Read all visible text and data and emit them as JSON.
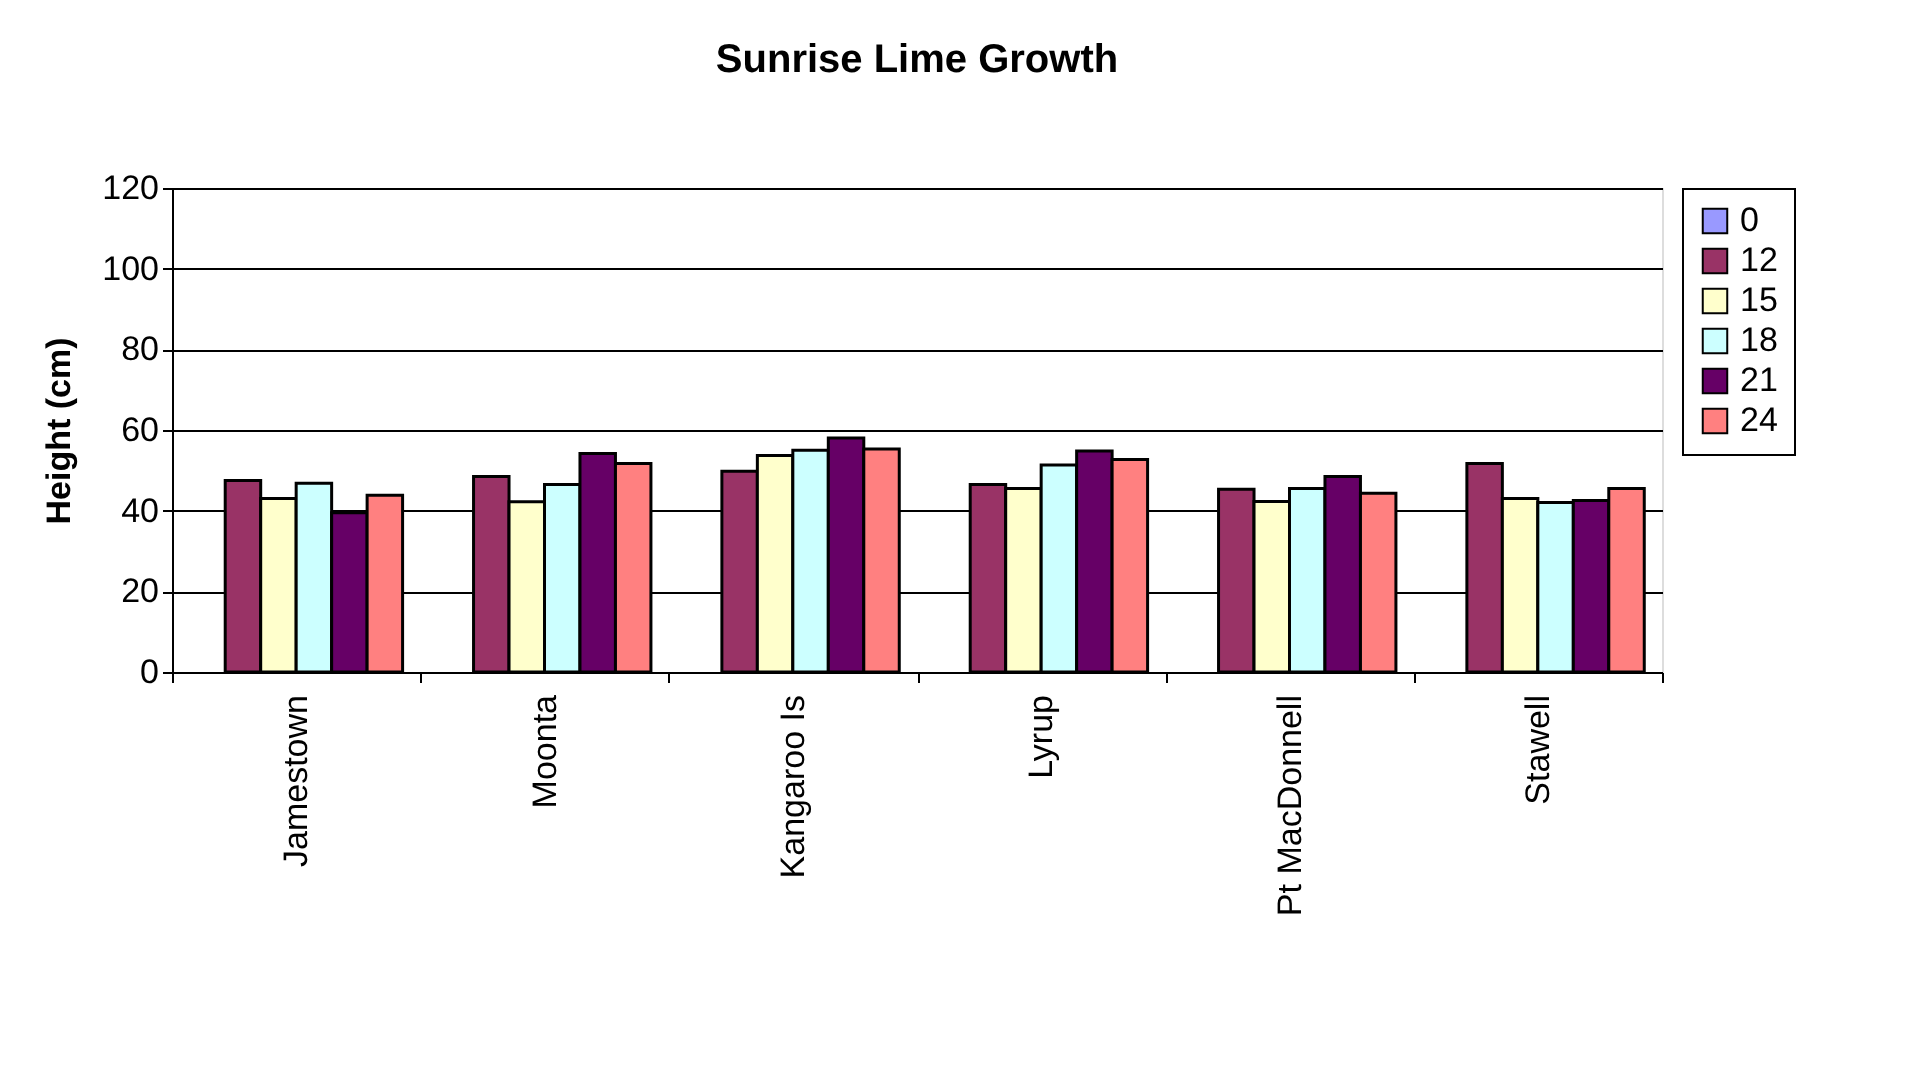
{
  "chart_data": {
    "type": "bar",
    "title": "Sunrise Lime Growth",
    "ylabel": "Height (cm)",
    "categories": [
      "Jamestown",
      "Moonta",
      "Kangaroo Is",
      "Lyrup",
      "Pt MacDonnell",
      "Stawell"
    ],
    "series": [
      {
        "name": "0",
        "color": "#9999ff",
        "values": [
          null,
          null,
          null,
          null,
          null,
          null
        ]
      },
      {
        "name": "12",
        "color": "#993366",
        "values": [
          47.5,
          48.5,
          49.8,
          46.5,
          45.3,
          51.7
        ]
      },
      {
        "name": "15",
        "color": "#ffffcc",
        "values": [
          43,
          42.2,
          53.7,
          45.5,
          42.3,
          43
        ]
      },
      {
        "name": "18",
        "color": "#ccffff",
        "values": [
          46.8,
          46.5,
          55,
          51.3,
          45.5,
          42
        ]
      },
      {
        "name": "21",
        "color": "#660066",
        "values": [
          39.5,
          54.2,
          58,
          54.8,
          48.5,
          42.5
        ]
      },
      {
        "name": "24",
        "color": "#ff8080",
        "values": [
          43.8,
          51.7,
          55.3,
          52.7,
          44.3,
          45.5
        ]
      }
    ],
    "ylim": [
      0,
      120
    ],
    "yticks": [
      0,
      20,
      40,
      60,
      80,
      100,
      120
    ],
    "grid": "y",
    "legend": "right"
  }
}
